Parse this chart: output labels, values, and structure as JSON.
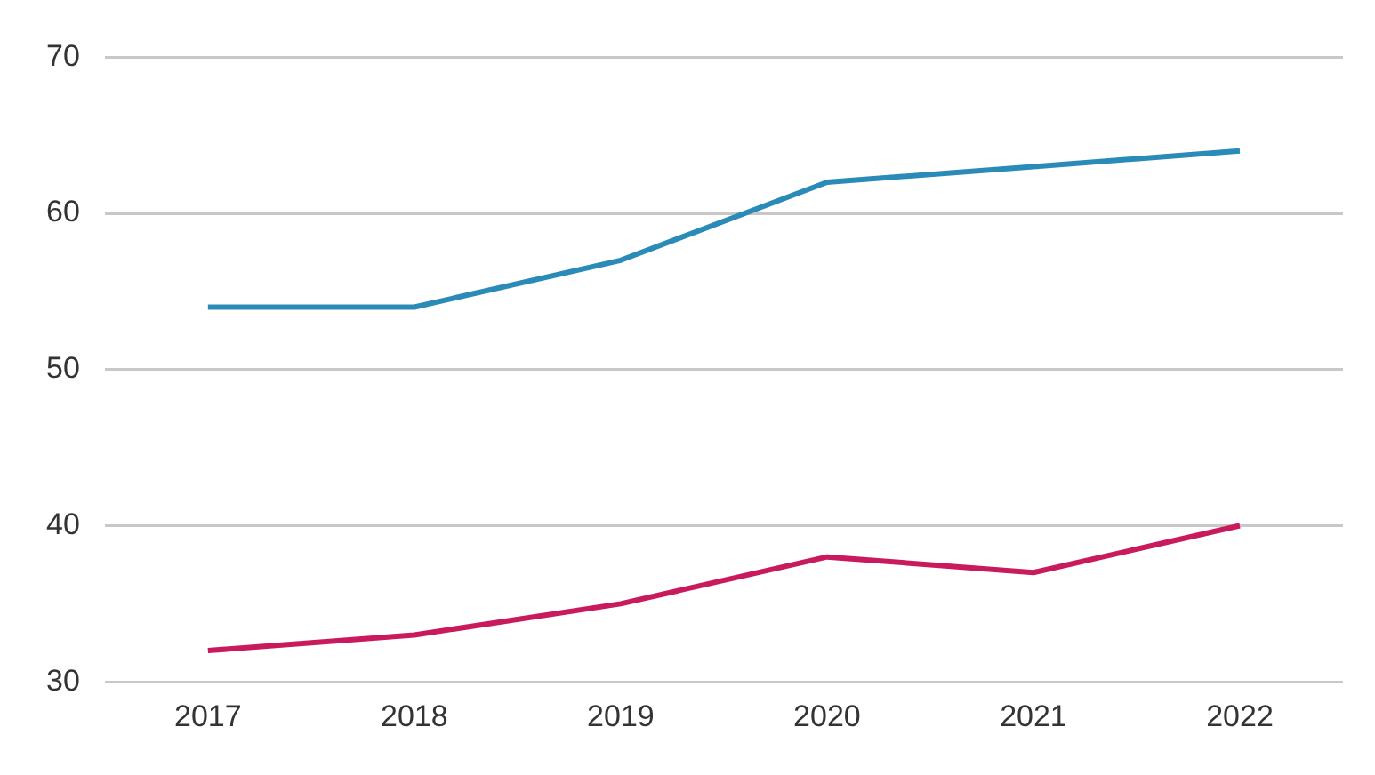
{
  "chart_data": {
    "type": "line",
    "categories": [
      "2017",
      "2018",
      "2019",
      "2020",
      "2021",
      "2022"
    ],
    "series": [
      {
        "color": "#2a8bb8",
        "values": [
          54,
          54,
          57,
          62,
          63,
          64
        ]
      },
      {
        "color": "#c81a5c",
        "values": [
          32,
          33,
          35,
          38,
          37,
          40
        ]
      }
    ],
    "ylim": [
      30,
      70
    ],
    "yticks": [
      30,
      40,
      50,
      60,
      70
    ],
    "grid": "y",
    "legend": false,
    "marker": "none",
    "line_style": "solid"
  }
}
